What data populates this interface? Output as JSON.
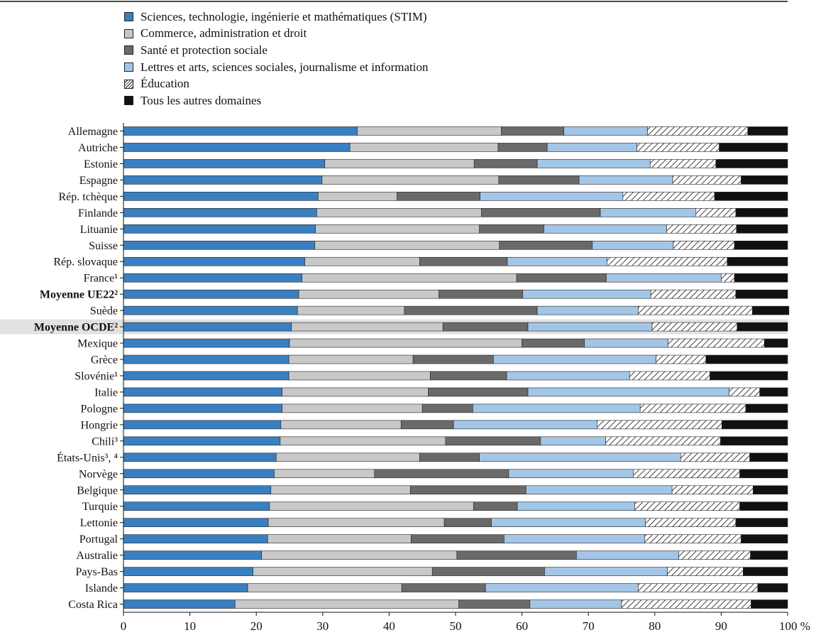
{
  "chart_data": {
    "type": "bar",
    "orientation": "horizontal",
    "stacked": true,
    "title": "",
    "xlabel": "",
    "ylabel": "",
    "xlim": [
      0,
      100
    ],
    "x_ticks": [
      "0",
      "10",
      "20",
      "30",
      "40",
      "50",
      "60",
      "70",
      "80",
      "90",
      "100 %"
    ],
    "legend_position": "top",
    "highlighted_category": "Moyenne OCDE²",
    "categories": [
      "Allemagne",
      "Autriche",
      "Estonie",
      "Espagne",
      "Rép. tchèque",
      "Finlande",
      "Lituanie",
      "Suisse",
      "Rép. slovaque",
      "France¹",
      "Moyenne UE22²",
      "Suède",
      "Moyenne OCDE²",
      "Mexique",
      "Grèce",
      "Slovénie¹",
      "Italie",
      "Pologne",
      "Hongrie",
      "Chili³",
      "États-Unis³, ⁴",
      "Norvège",
      "Belgique",
      "Turquie",
      "Lettonie",
      "Portugal",
      "Australie",
      "Pays-Bas",
      "Islande",
      "Costa Rica"
    ],
    "bold_categories": [
      "Moyenne UE22²",
      "Moyenne OCDE²"
    ],
    "series": [
      {
        "name": "Sciences, technologie, ingénierie et mathématiques (STIM)",
        "color": "#3a7fc1",
        "pattern": "solid",
        "values": [
          35.2,
          34.1,
          30.3,
          29.9,
          29.3,
          29.1,
          28.9,
          28.8,
          27.3,
          26.9,
          26.4,
          26.2,
          25.3,
          25.0,
          24.9,
          24.9,
          23.9,
          23.9,
          23.7,
          23.6,
          23.0,
          22.7,
          22.2,
          22.0,
          21.8,
          21.7,
          20.8,
          19.5,
          18.7,
          16.8
        ]
      },
      {
        "name": "Commerce, administration et droit",
        "color": "#c8c8c8",
        "pattern": "solid",
        "values": [
          21.7,
          22.3,
          22.5,
          26.6,
          11.9,
          24.8,
          24.7,
          27.8,
          17.3,
          32.3,
          21.1,
          16.1,
          22.8,
          35.0,
          18.7,
          21.3,
          22.0,
          21.1,
          18.1,
          24.9,
          21.6,
          15.1,
          21.0,
          30.7,
          26.5,
          21.6,
          29.4,
          27.0,
          23.2,
          33.7
        ]
      },
      {
        "name": "Santé et protection sociale",
        "color": "#6a6a6a",
        "pattern": "solid",
        "values": [
          9.4,
          7.4,
          9.5,
          12.1,
          12.5,
          17.9,
          9.7,
          14.0,
          13.2,
          13.5,
          12.6,
          20.0,
          12.8,
          9.4,
          12.1,
          11.5,
          15.0,
          7.6,
          7.9,
          14.3,
          9.0,
          20.2,
          17.4,
          6.6,
          7.1,
          14.0,
          18.0,
          16.9,
          12.6,
          10.7
        ]
      },
      {
        "name": "Lettres et arts, sciences sociales, journalisme et information",
        "color": "#a4c6e6",
        "pattern": "solid",
        "values": [
          12.6,
          13.5,
          17.0,
          14.1,
          21.5,
          14.4,
          18.5,
          12.2,
          15.0,
          17.3,
          19.3,
          15.2,
          18.7,
          12.6,
          24.5,
          18.5,
          30.3,
          25.2,
          21.6,
          9.8,
          30.3,
          18.8,
          22.0,
          17.7,
          23.2,
          21.2,
          15.4,
          18.5,
          23.0,
          13.8
        ]
      },
      {
        "name": "Éducation",
        "color": "#ffffff",
        "pattern": "hatch",
        "values": [
          15.1,
          12.4,
          9.9,
          10.3,
          13.8,
          6.0,
          10.5,
          9.2,
          18.1,
          2.0,
          12.8,
          17.2,
          12.8,
          14.5,
          7.5,
          12.1,
          4.6,
          15.9,
          18.8,
          17.3,
          10.4,
          16.0,
          12.2,
          15.8,
          13.6,
          14.5,
          10.8,
          11.4,
          18.0,
          19.5
        ]
      },
      {
        "name": "Tous les autres domaines",
        "color": "#111111",
        "pattern": "solid",
        "values": [
          6.0,
          10.3,
          10.8,
          7.0,
          11.0,
          7.8,
          7.7,
          8.0,
          9.1,
          8.0,
          7.8,
          5.5,
          7.6,
          3.5,
          12.3,
          11.7,
          4.2,
          6.3,
          9.9,
          10.1,
          5.7,
          7.2,
          5.2,
          7.2,
          7.8,
          7.0,
          5.6,
          6.7,
          4.5,
          5.5
        ]
      }
    ]
  }
}
